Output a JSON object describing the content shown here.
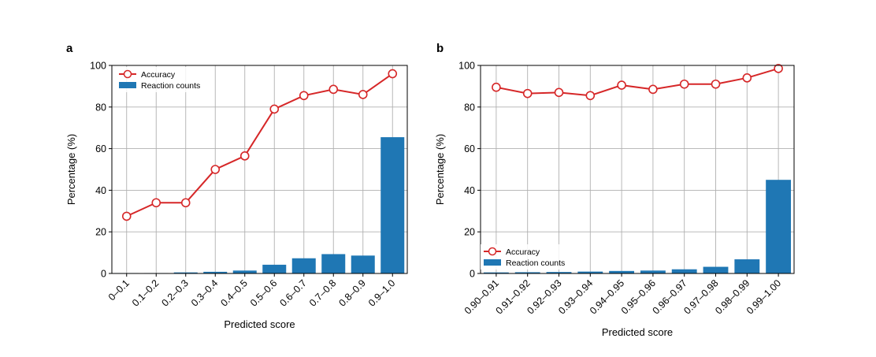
{
  "colors": {
    "accuracy": "#d62728",
    "bars": "#1f77b4",
    "grid": "#b0b0b0",
    "axis": "#000000"
  },
  "chart_data": [
    {
      "panel": "a",
      "type": "bar",
      "xlabel": "Predicted score",
      "ylabel": "Percentage (%)",
      "ylim": [
        0,
        100
      ],
      "yticks": [
        0,
        20,
        40,
        60,
        80,
        100
      ],
      "grid": true,
      "legend_position": "top-left",
      "categories": [
        "0–0.1",
        "0.1–0.2",
        "0.2–0.3",
        "0.3–0.4",
        "0.4–0.5",
        "0.5–0.6",
        "0.6–0.7",
        "0.7–0.8",
        "0.8–0.9",
        "0.9–1.0"
      ],
      "series": [
        {
          "name": "Accuracy",
          "kind": "line",
          "values": [
            27.5,
            34,
            34,
            50,
            56.5,
            79,
            85.5,
            88.5,
            86,
            96
          ]
        },
        {
          "name": "Reaction counts",
          "kind": "bar",
          "values": [
            0.2,
            0.2,
            0.5,
            0.8,
            1.4,
            4.2,
            7.3,
            9.3,
            8.6,
            65.5
          ]
        }
      ]
    },
    {
      "panel": "b",
      "type": "bar",
      "xlabel": "Predicted score",
      "ylabel": "Percentage (%)",
      "ylim": [
        0,
        100
      ],
      "yticks": [
        0,
        20,
        40,
        60,
        80,
        100
      ],
      "grid": true,
      "legend_position": "lower-left",
      "categories": [
        "0.90–0.91",
        "0.91–0.92",
        "0.92–0.93",
        "0.93–0.94",
        "0.94–0.95",
        "0.95–0.96",
        "0.96–0.97",
        "0.97–0.98",
        "0.98–0.99",
        "0.99–1.00"
      ],
      "series": [
        {
          "name": "Accuracy",
          "kind": "line",
          "values": [
            89.5,
            86.5,
            87,
            85.5,
            90.5,
            88.5,
            91,
            91,
            94,
            98.5
          ]
        },
        {
          "name": "Reaction counts",
          "kind": "bar",
          "values": [
            0.5,
            0.6,
            0.7,
            0.9,
            1.2,
            1.4,
            2.0,
            3.2,
            6.8,
            45
          ]
        }
      ]
    }
  ]
}
